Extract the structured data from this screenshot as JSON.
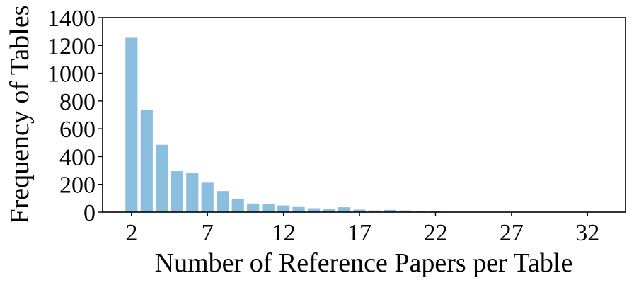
{
  "chart_data": {
    "type": "bar",
    "xlabel": "Number of Reference Papers per Table",
    "ylabel": "Frequency of Tables",
    "x": [
      2,
      3,
      4,
      5,
      6,
      7,
      8,
      9,
      10,
      11,
      12,
      13,
      14,
      15,
      16,
      17,
      18,
      19,
      20,
      21,
      22,
      23,
      24,
      25,
      26,
      27,
      28,
      29,
      30,
      31,
      32,
      33
    ],
    "values": [
      1255,
      735,
      485,
      295,
      285,
      212,
      152,
      92,
      62,
      58,
      48,
      42,
      28,
      20,
      35,
      18,
      12,
      16,
      12,
      9,
      5,
      3,
      3,
      2,
      1,
      1,
      1,
      1,
      0,
      1,
      0,
      1
    ],
    "xticks": [
      2,
      7,
      12,
      17,
      22,
      27,
      32
    ],
    "yticks": [
      0,
      200,
      400,
      600,
      800,
      1000,
      1200,
      1400
    ],
    "xlim": [
      0.1,
      34.5
    ],
    "ylim": [
      0,
      1400
    ],
    "bar_color": "#8bbfe0",
    "grid": false,
    "legend": "none"
  }
}
